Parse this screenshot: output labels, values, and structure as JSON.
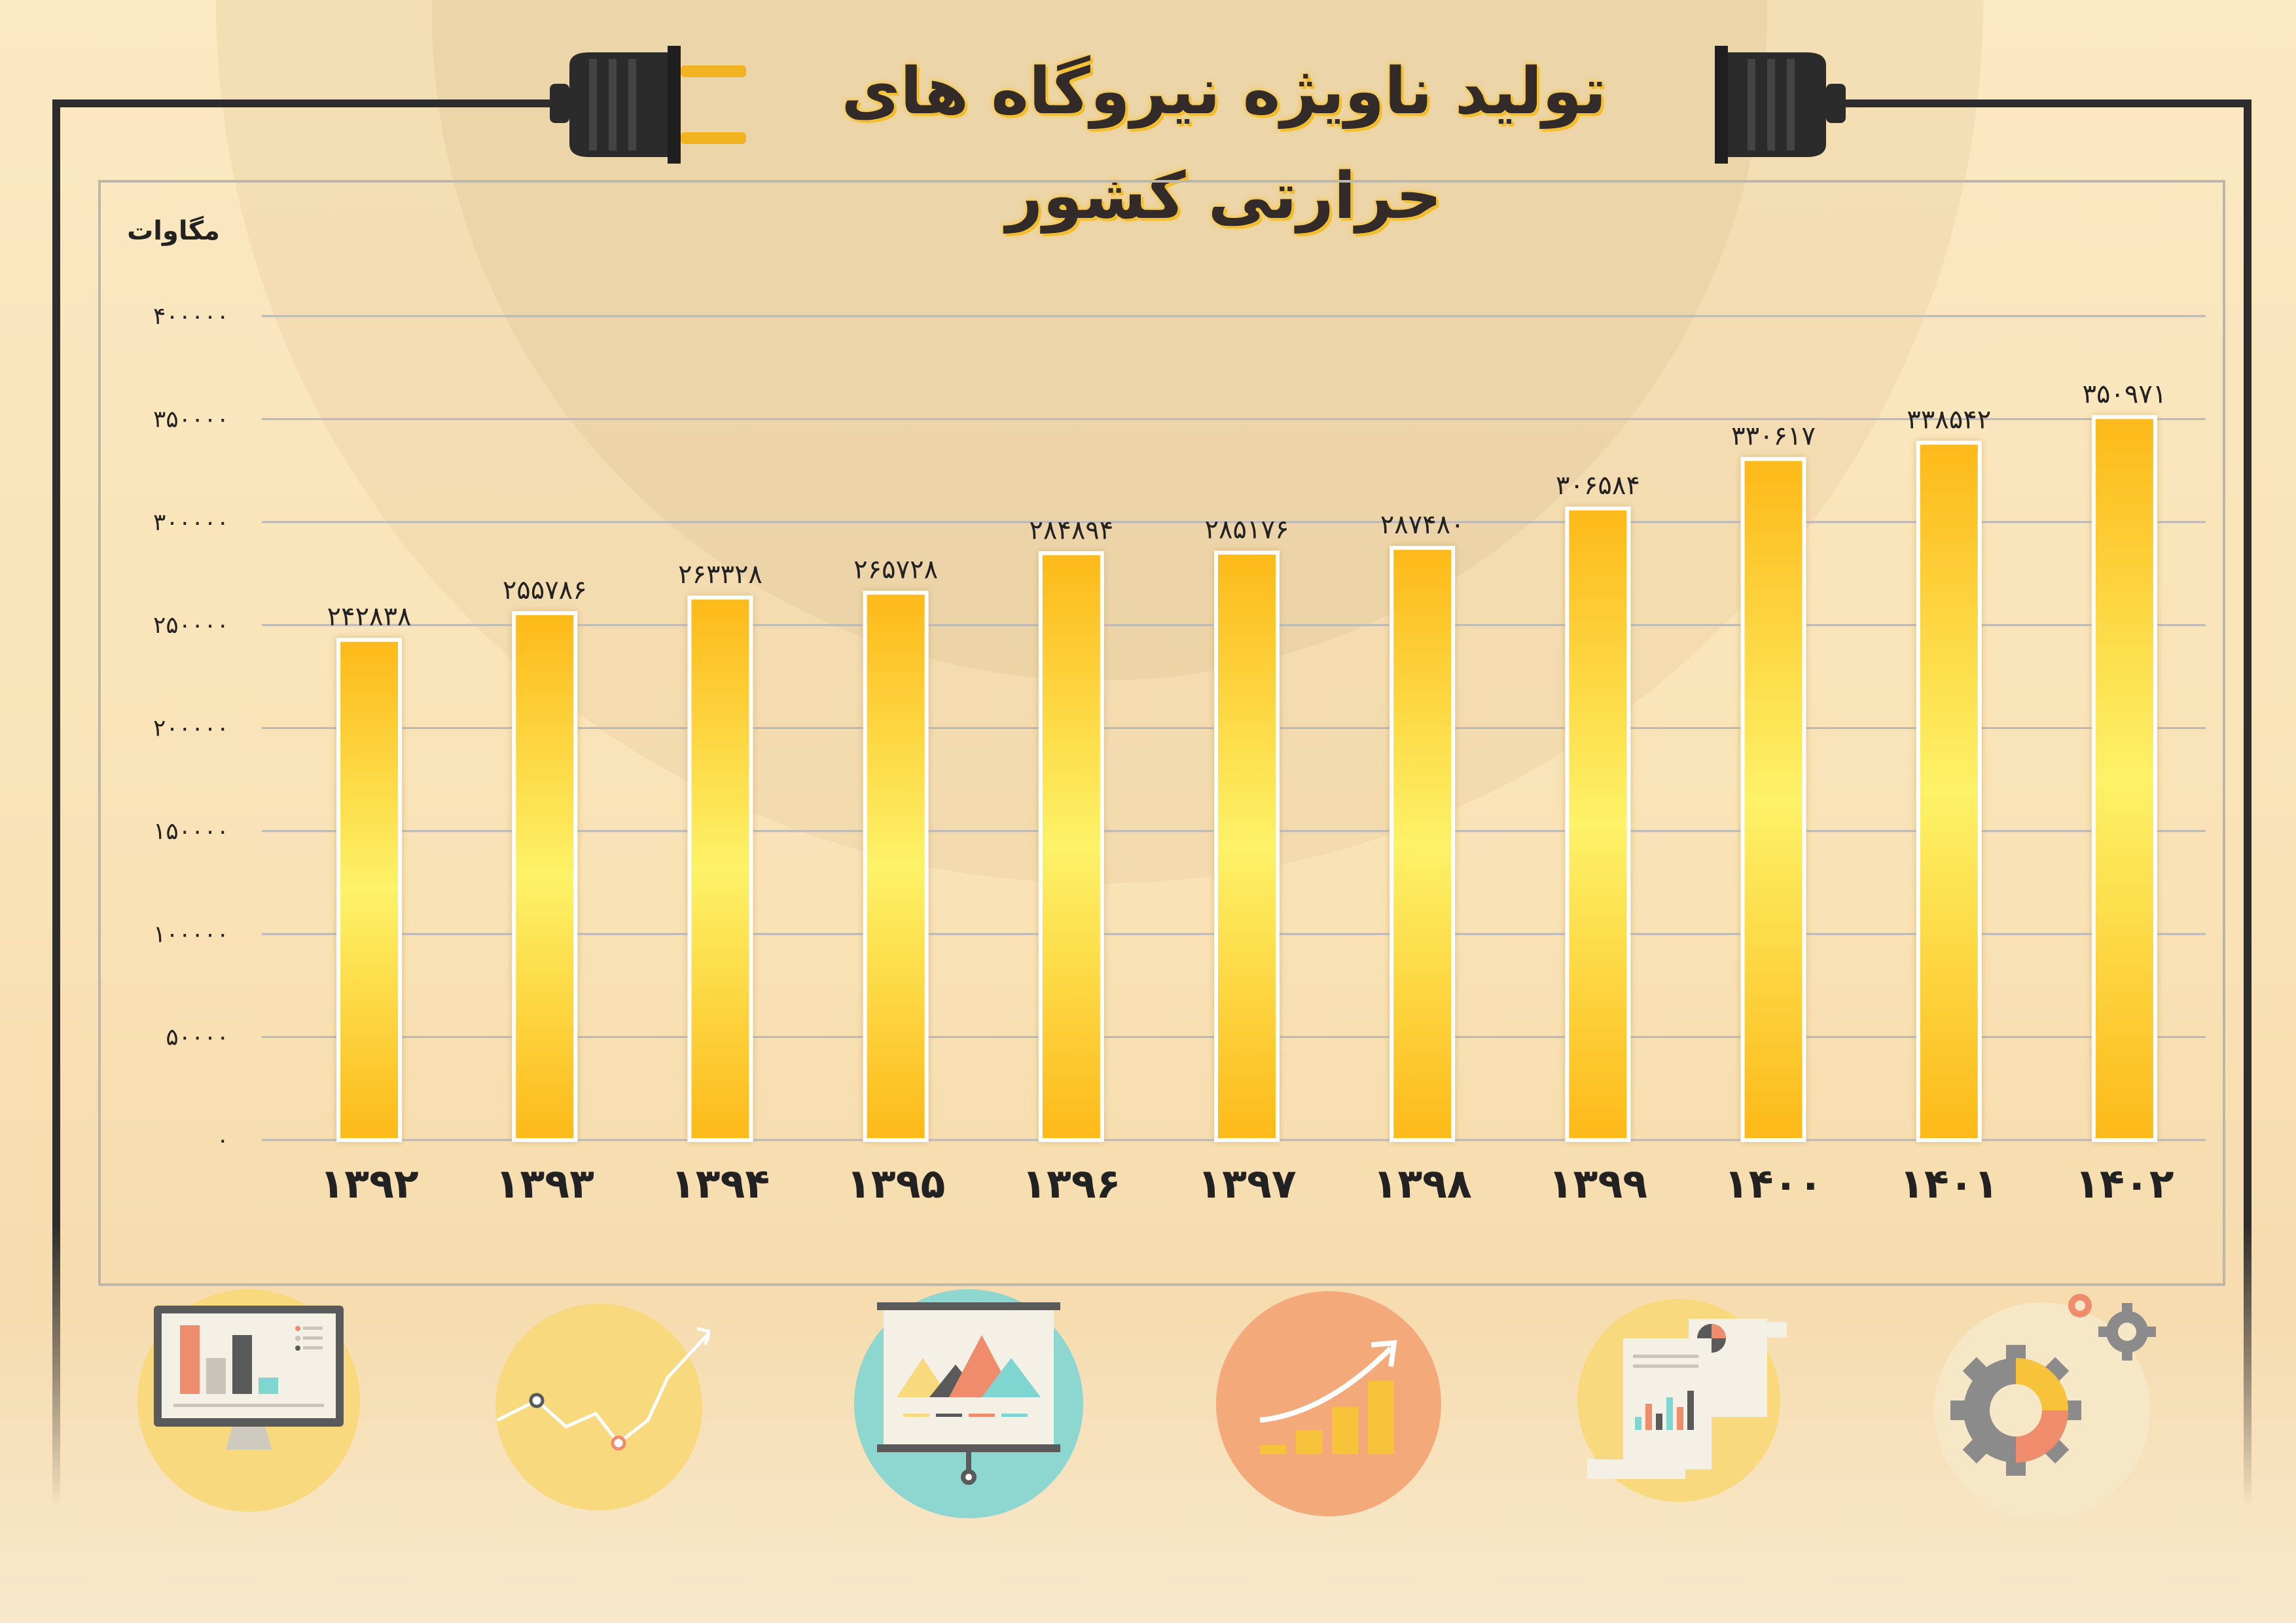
{
  "title": "تولید ناویژه نیروگاه های حرارتی کشور",
  "chart_data": {
    "type": "bar",
    "title": "تولید ناویژه نیروگاه های حرارتی کشور",
    "ylabel": "مگاوات",
    "xlabel": "",
    "categories": [
      "۱۳۹۲",
      "۱۳۹۳",
      "۱۳۹۴",
      "۱۳۹۵",
      "۱۳۹۶",
      "۱۳۹۷",
      "۱۳۹۸",
      "۱۳۹۹",
      "۱۴۰۰",
      "۱۴۰۱",
      "۱۴۰۲"
    ],
    "values": [
      242838,
      255786,
      263328,
      265728,
      284894,
      285176,
      287480,
      306584,
      330617,
      338542,
      350971
    ],
    "value_labels": [
      "۲۴۲۸۳۸",
      "۲۵۵۷۸۶",
      "۲۶۳۳۲۸",
      "۲۶۵۷۲۸",
      "۲۸۴۸۹۴",
      "۲۸۵۱۷۶",
      "۲۸۷۴۸۰",
      "۳۰۶۵۸۴",
      "۳۳۰۶۱۷",
      "۳۳۸۵۴۲",
      "۳۵۰۹۷۱"
    ],
    "ylim": [
      0,
      400000
    ],
    "yticks": [
      0,
      50000,
      100000,
      150000,
      200000,
      250000,
      300000,
      350000,
      400000
    ],
    "ytick_labels": [
      "۰",
      "۵۰۰۰۰",
      "۱۰۰۰۰۰",
      "۱۵۰۰۰۰",
      "۲۰۰۰۰۰",
      "۲۵۰۰۰۰",
      "۳۰۰۰۰۰",
      "۳۵۰۰۰۰",
      "۴۰۰۰۰۰"
    ],
    "grid": true,
    "legend": "none",
    "bar_gradient": [
      "#fdb919",
      "#fdf268",
      "#fdb919"
    ],
    "bar_border": "#ffffff"
  },
  "icons": [
    "monitor-chart-icon",
    "line-trend-icon",
    "presentation-board-icon",
    "growth-bars-icon",
    "report-documents-icon",
    "gears-icon"
  ],
  "colors": {
    "wire": "#2d2d2d",
    "plug": "#2b2b2b",
    "prong": "#f2b320",
    "gridline": "#b9b8bd",
    "axis_text": "#222222"
  }
}
